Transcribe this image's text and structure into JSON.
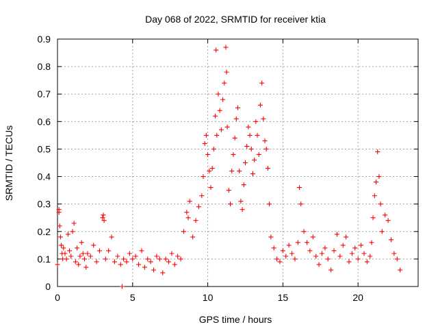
{
  "chart_data": {
    "type": "scatter",
    "title": "Day 068 of 2022, SRMTID for receiver ktia",
    "xlabel": "GPS time / hours",
    "ylabel": "SRMTID / TECUs",
    "xlim": [
      0,
      24
    ],
    "ylim": [
      0,
      0.9
    ],
    "x_ticks": [
      0,
      5,
      10,
      15,
      20
    ],
    "x_tick_labels": [
      "0",
      "5",
      "10",
      "15",
      "20"
    ],
    "y_ticks": [
      0,
      0.1,
      0.2,
      0.3,
      0.4,
      0.5,
      0.6,
      0.7,
      0.8,
      0.9
    ],
    "y_tick_labels": [
      "0",
      "0.1",
      "0.2",
      "0.3",
      "0.4",
      "0.5",
      "0.6",
      "0.7",
      "0.8",
      "0.9"
    ],
    "grid": true,
    "marker": "plus",
    "series": [
      {
        "name": "SRMTID",
        "color": "#ff0000",
        "x": [
          0.0,
          0.1,
          0.1,
          0.15,
          0.2,
          0.25,
          0.3,
          0.35,
          0.4,
          0.5,
          0.6,
          0.7,
          0.8,
          0.9,
          1.0,
          1.1,
          1.2,
          1.3,
          1.4,
          1.5,
          1.6,
          1.7,
          1.8,
          1.9,
          2.0,
          2.2,
          2.4,
          2.6,
          2.8,
          3.0,
          3.05,
          3.1,
          3.2,
          3.4,
          3.6,
          3.8,
          4.0,
          4.2,
          4.3,
          4.4,
          4.6,
          4.8,
          5.0,
          5.2,
          5.4,
          5.6,
          5.8,
          6.0,
          6.2,
          6.4,
          6.6,
          6.8,
          7.0,
          7.2,
          7.4,
          7.6,
          7.8,
          8.0,
          8.2,
          8.4,
          8.6,
          8.7,
          8.8,
          9.0,
          9.2,
          9.4,
          9.6,
          9.7,
          9.8,
          9.9,
          10.0,
          10.1,
          10.2,
          10.3,
          10.4,
          10.5,
          10.55,
          10.6,
          10.7,
          10.8,
          10.9,
          11.0,
          11.1,
          11.2,
          11.25,
          11.3,
          11.4,
          11.5,
          11.6,
          11.7,
          11.8,
          11.9,
          12.0,
          12.1,
          12.2,
          12.3,
          12.4,
          12.5,
          12.6,
          12.7,
          12.8,
          12.9,
          13.0,
          13.1,
          13.2,
          13.3,
          13.4,
          13.5,
          13.6,
          13.7,
          13.8,
          13.9,
          14.0,
          14.1,
          14.2,
          14.4,
          14.6,
          14.8,
          15.0,
          15.2,
          15.4,
          15.6,
          15.8,
          16.0,
          16.1,
          16.2,
          16.4,
          16.6,
          16.8,
          17.0,
          17.2,
          17.4,
          17.6,
          17.8,
          18.0,
          18.2,
          18.4,
          18.6,
          18.8,
          19.0,
          19.2,
          19.4,
          19.6,
          19.8,
          20.0,
          20.2,
          20.4,
          20.6,
          20.8,
          20.9,
          21.0,
          21.1,
          21.2,
          21.3,
          21.4,
          21.5,
          21.6,
          21.8,
          22.0,
          22.2,
          22.4,
          22.6,
          22.8
        ],
        "y": [
          0.08,
          0.27,
          0.28,
          0.22,
          0.18,
          0.15,
          0.12,
          0.1,
          0.14,
          0.12,
          0.1,
          0.19,
          0.13,
          0.11,
          0.2,
          0.23,
          0.09,
          0.14,
          0.08,
          0.11,
          0.16,
          0.12,
          0.1,
          0.07,
          0.12,
          0.11,
          0.15,
          0.09,
          0.13,
          0.25,
          0.26,
          0.24,
          0.1,
          0.13,
          0.18,
          0.09,
          0.11,
          0.08,
          0.0,
          0.1,
          0.09,
          0.12,
          0.1,
          0.11,
          0.08,
          0.13,
          0.07,
          0.1,
          0.09,
          0.06,
          0.11,
          0.1,
          0.05,
          0.1,
          0.09,
          0.12,
          0.08,
          0.11,
          0.1,
          0.2,
          0.27,
          0.25,
          0.31,
          0.18,
          0.24,
          0.29,
          0.33,
          0.4,
          0.52,
          0.55,
          0.48,
          0.42,
          0.36,
          0.43,
          0.5,
          0.62,
          0.86,
          0.55,
          0.7,
          0.64,
          0.57,
          0.68,
          0.74,
          0.87,
          0.78,
          0.58,
          0.35,
          0.3,
          0.42,
          0.48,
          0.54,
          0.61,
          0.65,
          0.42,
          0.31,
          0.28,
          0.37,
          0.45,
          0.51,
          0.58,
          0.55,
          0.5,
          0.41,
          0.46,
          0.6,
          0.55,
          0.48,
          0.66,
          0.74,
          0.61,
          0.53,
          0.5,
          0.43,
          0.3,
          0.18,
          0.14,
          0.1,
          0.09,
          0.13,
          0.11,
          0.15,
          0.12,
          0.1,
          0.16,
          0.36,
          0.3,
          0.2,
          0.16,
          0.13,
          0.18,
          0.11,
          0.08,
          0.12,
          0.14,
          0.1,
          0.06,
          0.13,
          0.19,
          0.11,
          0.15,
          0.18,
          0.09,
          0.12,
          0.14,
          0.1,
          0.15,
          0.12,
          0.09,
          0.11,
          0.16,
          0.25,
          0.33,
          0.38,
          0.49,
          0.4,
          0.3,
          0.2,
          0.26,
          0.24,
          0.17,
          0.12,
          0.1,
          0.06
        ]
      }
    ]
  }
}
